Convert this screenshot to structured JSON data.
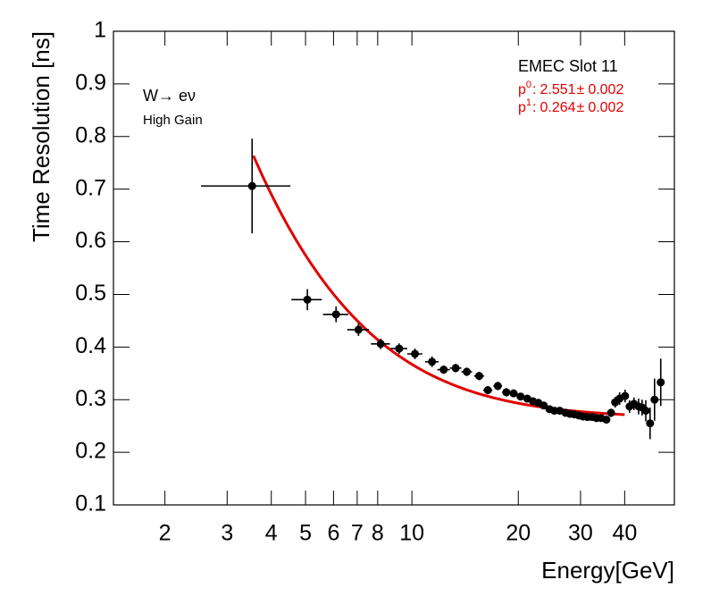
{
  "chart_data": {
    "type": "scatter",
    "x_label": "Energy[GeV]",
    "y_label": "Time Resolution [ns]",
    "log_x": true,
    "xlim": [
      1.43,
      55.3
    ],
    "xticks": [
      2,
      3,
      4,
      5,
      6,
      7,
      8,
      10,
      20,
      30,
      40
    ],
    "ylim": [
      0.1,
      1
    ],
    "yticks": [
      0.1,
      0.2,
      0.3,
      0.4,
      0.5,
      0.6,
      0.7,
      0.8,
      0.9,
      1
    ],
    "color": "#000000",
    "x": [
      3.53,
      5.06,
      6.1,
      7.06,
      8.16,
      9.2,
      10.2,
      11.4,
      12.3,
      13.3,
      14.3,
      15.5,
      16.4,
      17.5,
      18.5,
      19.4,
      20.3,
      21.2,
      22.0,
      22.8,
      23.6,
      24.5,
      25.3,
      26.2,
      27.2,
      28.0,
      28.8,
      29.7,
      30.5,
      31.4,
      32.4,
      33.3,
      34.3,
      35.5,
      36.6,
      37.6,
      38.7,
      40.1,
      41.3,
      42.5,
      43.8,
      44.8,
      45.9,
      47.2,
      48.6,
      50.6
    ],
    "xerr": [
      1.0,
      0.5,
      0.5,
      0.5,
      0.5,
      0.5,
      0.5,
      0.5,
      0.5,
      0.5,
      0.5,
      0.5,
      0.5,
      0.5,
      0.5,
      0.5,
      0.5,
      0.5,
      0.4,
      0.4,
      0.4,
      0.4,
      0.4,
      0.4,
      0.4,
      0.4,
      0.4,
      0.4,
      0.4,
      0.4,
      0.4,
      0.4,
      0.4,
      0.5,
      0.5,
      0.5,
      0.5,
      0.5,
      0.5,
      0.5,
      0.5,
      0.5,
      0.5,
      0.5,
      0.5,
      0.5
    ],
    "values": [
      0.706,
      0.49,
      0.462,
      0.433,
      0.406,
      0.397,
      0.387,
      0.372,
      0.357,
      0.36,
      0.353,
      0.345,
      0.318,
      0.326,
      0.314,
      0.312,
      0.306,
      0.302,
      0.297,
      0.294,
      0.289,
      0.282,
      0.279,
      0.279,
      0.275,
      0.273,
      0.272,
      0.27,
      0.268,
      0.267,
      0.267,
      0.265,
      0.265,
      0.262,
      0.275,
      0.295,
      0.302,
      0.307,
      0.287,
      0.292,
      0.287,
      0.285,
      0.279,
      0.255,
      0.3,
      0.333
    ],
    "yerr": [
      0.09,
      0.02,
      0.015,
      0.012,
      0.01,
      0.01,
      0.01,
      0.01,
      0.008,
      0.008,
      0.008,
      0.008,
      0.008,
      0.008,
      0.008,
      0.006,
      0.006,
      0.006,
      0.006,
      0.006,
      0.006,
      0.006,
      0.006,
      0.006,
      0.006,
      0.006,
      0.006,
      0.006,
      0.006,
      0.006,
      0.006,
      0.006,
      0.006,
      0.006,
      0.008,
      0.01,
      0.012,
      0.012,
      0.012,
      0.012,
      0.015,
      0.015,
      0.02,
      0.03,
      0.04,
      0.045
    ],
    "fit": {
      "color": "#e00000",
      "range": [
        3.56,
        40
      ],
      "separator": ":",
      "pm": "±",
      "parameters": [
        {
          "name": "p",
          "index": "0",
          "value": 2.551,
          "error": 0.002
        },
        {
          "name": "p",
          "index": "1",
          "value": 0.264,
          "error": 0.002
        }
      ]
    },
    "annotations": [
      "EMEC Slot 11",
      "W→ eν",
      "High Gain"
    ]
  }
}
